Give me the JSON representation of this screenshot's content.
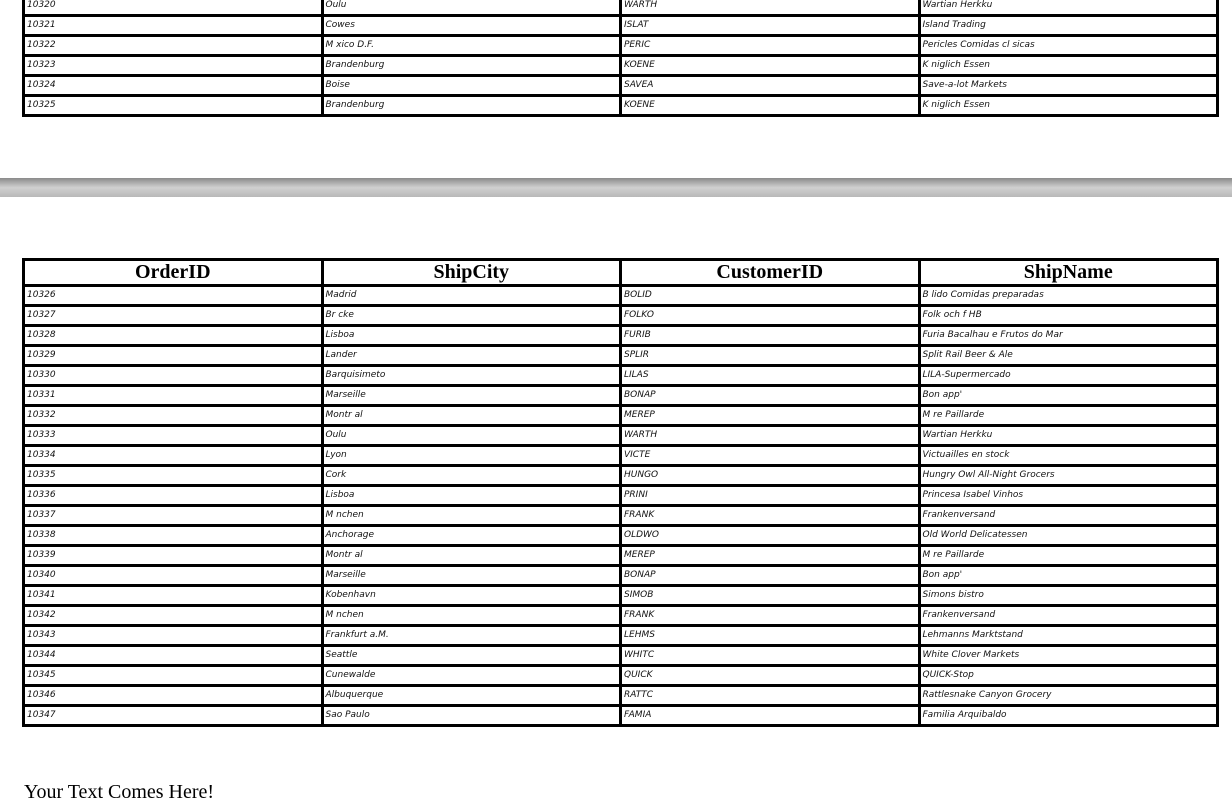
{
  "columns": [
    "OrderID",
    "ShipCity",
    "CustomerID",
    "ShipName"
  ],
  "page1_rows": [
    [
      "10320",
      "Oulu",
      "WARTH",
      "Wartian Herkku"
    ],
    [
      "10321",
      "Cowes",
      "ISLAT",
      "Island Trading"
    ],
    [
      "10322",
      "M  xico D.F.",
      "PERIC",
      "Pericles Comidas cl  sicas"
    ],
    [
      "10323",
      "Brandenburg",
      "KOENE",
      "K  niglich Essen"
    ],
    [
      "10324",
      "Boise",
      "SAVEA",
      "Save-a-lot Markets"
    ],
    [
      "10325",
      "Brandenburg",
      "KOENE",
      "K  niglich Essen"
    ]
  ],
  "page2_rows": [
    [
      "10326",
      "Madrid",
      "BOLID",
      "B  lido Comidas preparadas"
    ],
    [
      "10327",
      "Br  cke",
      "FOLKO",
      "Folk och f   HB"
    ],
    [
      "10328",
      "Lisboa",
      "FURIB",
      "Furia Bacalhau e Frutos do Mar"
    ],
    [
      "10329",
      "Lander",
      "SPLIR",
      "Split Rail Beer & Ale"
    ],
    [
      "10330",
      "Barquisimeto",
      "LILAS",
      "LILA-Supermercado"
    ],
    [
      "10331",
      "Marseille",
      "BONAP",
      "Bon app'"
    ],
    [
      "10332",
      "Montr  al",
      "MEREP",
      "M  re Paillarde"
    ],
    [
      "10333",
      "Oulu",
      "WARTH",
      "Wartian Herkku"
    ],
    [
      "10334",
      "Lyon",
      "VICTE",
      "Victuailles en stock"
    ],
    [
      "10335",
      "Cork",
      "HUNGO",
      "Hungry Owl All-Night Grocers"
    ],
    [
      "10336",
      "Lisboa",
      "PRINI",
      "Princesa Isabel Vinhos"
    ],
    [
      "10337",
      "M  nchen",
      "FRANK",
      "Frankenversand"
    ],
    [
      "10338",
      "Anchorage",
      "OLDWO",
      "Old World Delicatessen"
    ],
    [
      "10339",
      "Montr  al",
      "MEREP",
      "M  re Paillarde"
    ],
    [
      "10340",
      "Marseille",
      "BONAP",
      "Bon app'"
    ],
    [
      "10341",
      "Kobenhavn",
      "SIMOB",
      "Simons bistro"
    ],
    [
      "10342",
      "M  nchen",
      "FRANK",
      "Frankenversand"
    ],
    [
      "10343",
      "Frankfurt a.M.",
      "LEHMS",
      "Lehmanns Marktstand"
    ],
    [
      "10344",
      "Seattle",
      "WHITC",
      "White Clover Markets"
    ],
    [
      "10345",
      "Cunewalde",
      "QUICK",
      "QUICK-Stop"
    ],
    [
      "10346",
      "Albuquerque",
      "RATTC",
      "Rattlesnake Canyon Grocery"
    ],
    [
      "10347",
      "Sao Paulo",
      "FAMIA",
      "Familia Arquibaldo"
    ]
  ],
  "footer_text": "Your Text Comes Here!"
}
